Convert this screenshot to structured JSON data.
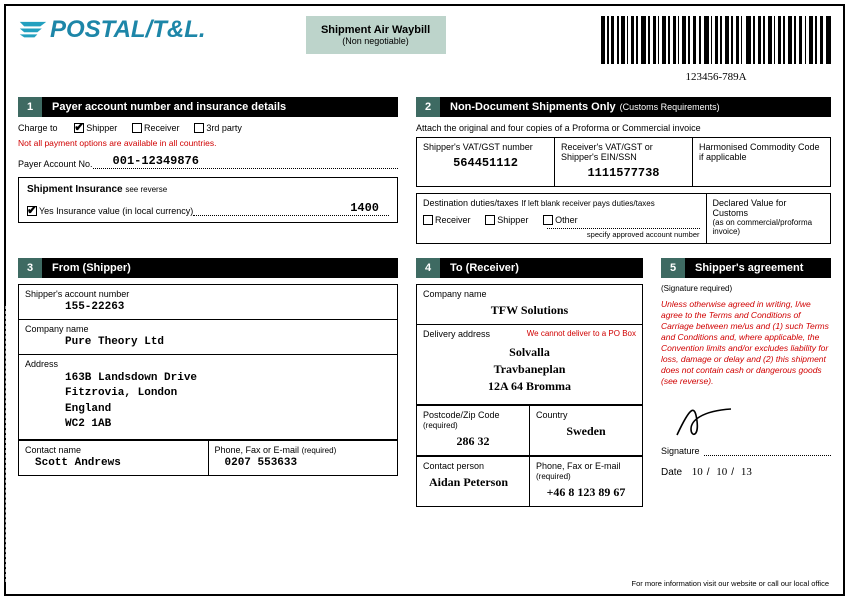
{
  "brand": {
    "name": "POSTAL/T&L.",
    "color": "#1d86a8",
    "wing_color": "#23a0bf"
  },
  "doc_label": {
    "title": "Shipment Air Waybill",
    "subtitle": "(Non negotiable)"
  },
  "barcode_value": "123456-789A",
  "section1": {
    "num": "1",
    "title": "Payer account number and insurance details",
    "charge_to_label": "Charge to",
    "options": {
      "shipper": "Shipper",
      "receiver": "Receiver",
      "third": "3rd party"
    },
    "charge_to_selected": "shipper",
    "warning": "Not all payment options are available in all countries.",
    "payer_label": "Payer Account No.",
    "payer_account": "001-12349876",
    "insurance": {
      "title": "Shipment Insurance",
      "see": "see reverse",
      "yes_label": "Yes Insurance value (in local currency)",
      "checked": true,
      "value": "1400"
    }
  },
  "section2": {
    "num": "2",
    "title": "Non-Document Shipments Only",
    "title_sub": "(Customs Requirements)",
    "attach": "Attach the original and four copies of a Proforma or Commercial invoice",
    "vat_label": "Shipper's VAT/GST number",
    "vat": "564451112",
    "rec_vat_label": "Receiver's VAT/GST or Shipper's EIN/SSN",
    "rec_vat": "1111577738",
    "hcc_label": "Harmonised Commodity Code if applicable",
    "dest_label": "Destination duties/taxes",
    "dest_note": "If left blank receiver pays duties/taxes",
    "opts": {
      "receiver": "Receiver",
      "shipper": "Shipper",
      "other": "Other"
    },
    "spec_note": "specify approved account number",
    "declared_label": "Declared Value for Customs",
    "declared_note": "(as on commercial/proforma invoice)"
  },
  "section3": {
    "num": "3",
    "title": "From (Shipper)",
    "acct_label": "Shipper's account number",
    "acct": "155-22263",
    "company_label": "Company name",
    "company": "Pure Theory Ltd",
    "address_label": "Address",
    "address": "163B Landsdown Drive\nFitzrovia, London\nEngland\nWC2 1AB",
    "contact_label": "Contact name",
    "contact": "Scott Andrews",
    "phone_label": "Phone, Fax or E-mail",
    "phone_req": "(required)",
    "phone": "0207 553633"
  },
  "section4": {
    "num": "4",
    "title": "To (Receiver)",
    "company_label": "Company name",
    "company": "TFW Solutions",
    "addr_label": "Delivery address",
    "po_warn": "We cannot deliver to a PO Box",
    "addr_line1": "Solvalla",
    "addr_line2": "Travbaneplan",
    "addr_line3": "12A 64 Bromma",
    "postcode_label": "Postcode/Zip Code",
    "postcode_req": "(required)",
    "postcode": "286 32",
    "country_label": "Country",
    "country": "Sweden",
    "contact_label": "Contact person",
    "contact": "Aidan Peterson",
    "phone_label": "Phone, Fax or E-mail",
    "phone_req": "(required)",
    "phone": "+46 8 123 89 67"
  },
  "section5": {
    "num": "5",
    "title": "Shipper's agreement",
    "sig_req": "(Signature required)",
    "agreement": "Unless otherwise agreed in writing, I/we agree to the Terms and Conditions of Carriage between me/us and (1) such Terms and Conditions and, where applicable, the Convention limits and/or excludes liability for loss, damage or delay and (2) this shipment does not contain cash or dangerous goods (see reverse).",
    "sig_label": "Signature",
    "date_label": "Date",
    "date": {
      "d": "10",
      "m": "10",
      "y": "13"
    }
  },
  "footer": "For more information visit our website or call our local office",
  "colors": {
    "section_num_bg": "#3e6a62",
    "label_box_bg": "#bdd4cb",
    "red": "#d00000"
  }
}
